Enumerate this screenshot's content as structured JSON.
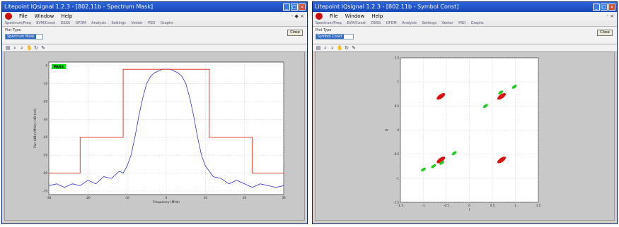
{
  "left_window": {
    "title": "Litepoint IQsignal 1.2.3 - [802.11b - Spectrum Mask]",
    "menu": [
      "File",
      "Window",
      "Help"
    ],
    "window_controls": [
      "_",
      "□",
      "×"
    ],
    "menu_right": "- ◆ ×",
    "tabs": [
      "Spectrum/Freq",
      "EVM/Const",
      "DSSS",
      "OFDM",
      "Analysis",
      "Settings",
      "Vector",
      "PSD",
      "Graphs"
    ],
    "plot_type_label": "Plot Type",
    "plot_type_value": "Spectrum Mask",
    "close_label": "Close",
    "toolbar_icons": [
      "print-icon",
      "zoom-in-icon",
      "zoom-out-icon",
      "pan-icon",
      "rotate-icon",
      "data-cursor-icon"
    ],
    "toolbar_glyphs": [
      "▤",
      "⌕",
      "⌕",
      "✋",
      "↻",
      "✎"
    ],
    "status_badge": "PASS",
    "status_color": "#00e000"
  },
  "right_window": {
    "title": "Litepoint IQsignal 1.2.3 - [802.11b - Symbol Const]",
    "menu": [
      "File",
      "Window",
      "Help"
    ],
    "window_controls": [
      "_",
      "□",
      "×"
    ],
    "menu_right": "- ×",
    "tabs": [
      "Spectrum/Freq",
      "EVM/Const",
      "DSSS",
      "OFDM",
      "Analysis",
      "Settings",
      "Vector",
      "PSD",
      "Graphs"
    ],
    "plot_type_label": "Plot Type",
    "plot_type_value": "Symbol Const",
    "close_label": "Close",
    "toolbar_icons": [
      "print-icon",
      "zoom-in-icon",
      "zoom-out-icon",
      "pan-icon",
      "rotate-icon",
      "data-cursor-icon"
    ],
    "toolbar_glyphs": [
      "▤",
      "⌕",
      "⌕",
      "✋",
      "↻",
      "✎"
    ]
  },
  "chart_data": [
    {
      "type": "line",
      "xlabel": "Frequency (MHz)",
      "ylabel": "Pwr (dBm/MHz) / dB (rel)",
      "xlim": [
        -30,
        30
      ],
      "ylim": [
        -72,
        2
      ],
      "xticks": [
        -30,
        -20,
        -10,
        0,
        10,
        20,
        30
      ],
      "yticks": [
        0,
        -10,
        -20,
        -30,
        -40,
        -50,
        -60,
        -70
      ],
      "grid": true,
      "series": [
        {
          "color": "#3333cc",
          "x": [
            -30,
            -28,
            -26,
            -24,
            -22,
            -20,
            -18,
            -16,
            -14,
            -12,
            -11,
            -10,
            -9,
            -8,
            -7,
            -6,
            -5,
            -4,
            -3,
            -2,
            -1,
            0,
            1,
            2,
            3,
            4,
            5,
            6,
            7,
            8,
            9,
            10,
            11,
            12,
            14,
            16,
            18,
            20,
            22,
            24,
            26,
            28,
            30
          ],
          "y": [
            -67,
            -66,
            -68,
            -66,
            -67,
            -64,
            -66,
            -62,
            -63,
            -59,
            -60,
            -56,
            -50,
            -40,
            -28,
            -18,
            -10,
            -6,
            -4,
            -3,
            -2,
            -2,
            -2,
            -3,
            -4,
            -6,
            -10,
            -18,
            -28,
            -40,
            -50,
            -56,
            -59,
            -62,
            -63,
            -66,
            -64,
            -66,
            -68,
            -66,
            -67,
            -68,
            -67
          ]
        },
        {
          "color": "#e04030",
          "x": [
            -30,
            -22,
            -22,
            -11,
            -11,
            11,
            11,
            22,
            22,
            30
          ],
          "y": [
            -60,
            -60,
            -40,
            -40,
            -2,
            -2,
            -40,
            -40,
            -60,
            -60
          ]
        }
      ]
    },
    {
      "type": "scatter",
      "xlabel": "I",
      "ylabel": "Q",
      "xlim": [
        -1.5,
        1.5
      ],
      "ylim": [
        -1.5,
        1.5
      ],
      "xticks": [
        -1.5,
        -1,
        -0.5,
        0,
        0.5,
        1,
        1.5
      ],
      "yticks": [
        1.5,
        1,
        0.5,
        0,
        -0.5,
        -1,
        -1.5
      ],
      "grid": true,
      "series": [
        {
          "color": "#dd1010",
          "x": [
            -0.62,
            0.7,
            -0.62,
            0.7
          ],
          "y": [
            0.7,
            0.7,
            -0.62,
            -0.62
          ]
        },
        {
          "color": "#22cc22",
          "x": [
            0.68,
            0.98,
            0.35,
            -0.6,
            -0.78,
            -1.0,
            -0.33
          ],
          "y": [
            0.78,
            0.9,
            0.5,
            -0.68,
            -0.75,
            -0.82,
            -0.48
          ]
        }
      ]
    }
  ]
}
